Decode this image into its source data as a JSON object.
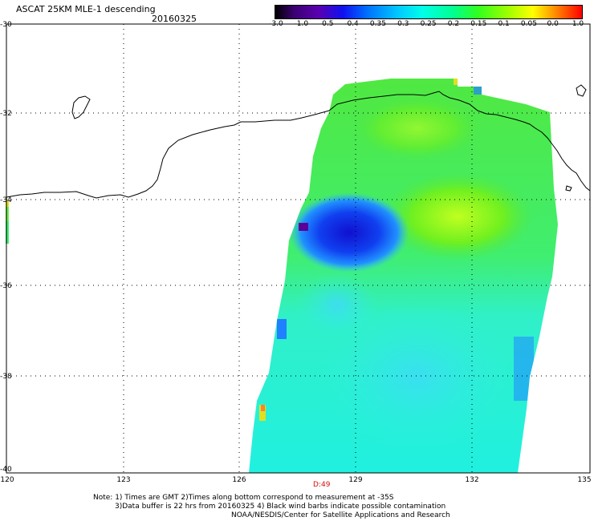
{
  "header": {
    "title": "ASCAT 25KM MLE-1 descending",
    "date": "20160325"
  },
  "colorbar": {
    "labels": [
      "-3.0",
      "-1.0",
      "-0.5",
      "-0.4",
      "-0.35",
      "-0.3",
      "-0.25",
      "-0.2",
      "-0.15",
      "-0.1",
      "-0.05",
      "0.0",
      "1.0"
    ],
    "colors": [
      "#000000",
      "#5a0099",
      "#0000ff",
      "#0060ff",
      "#00a0ff",
      "#00e0ff",
      "#00ffe0",
      "#00ff80",
      "#40ff00",
      "#c0ff00",
      "#ffff00",
      "#ff8000",
      "#ff0000"
    ]
  },
  "axes": {
    "lat_labels": [
      "-30",
      "-32",
      "-34",
      "-36",
      "-38",
      "-40"
    ],
    "lon_labels": [
      "120",
      "123",
      "126",
      "129",
      "132",
      "135"
    ]
  },
  "time_marker": "D:49",
  "notes": {
    "line1": "Note: 1) Times are GMT 2)Times along bottom correspond to measurement at -35S",
    "line2": "3)Data buffer is 22 hrs from 20160325 4) Black wind barbs indicate possible contamination",
    "line3": "NOAA/NESDIS/Center for Satellite Applications and Research"
  }
}
